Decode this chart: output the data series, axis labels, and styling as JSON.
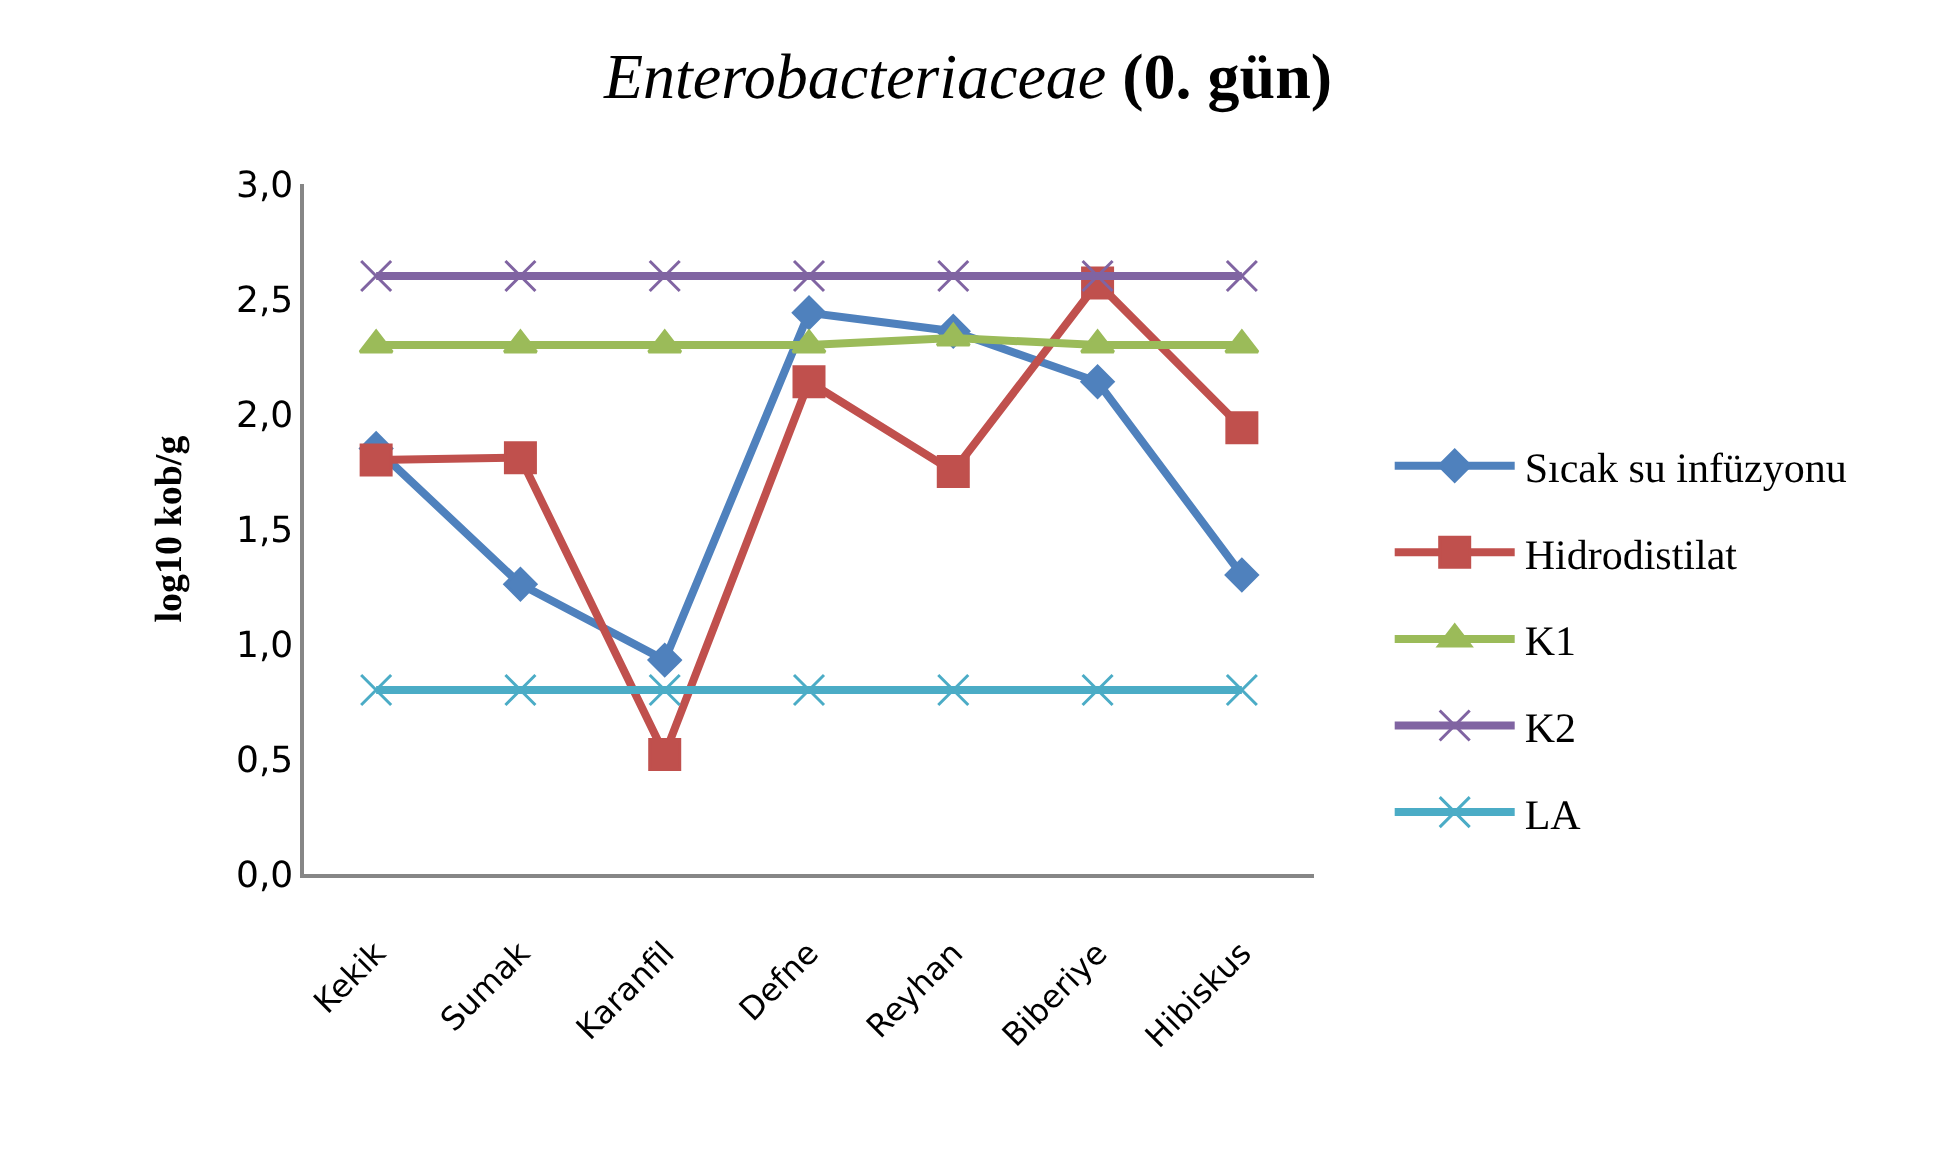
{
  "chart_data": {
    "type": "line",
    "title": "Enterobacteriaceae (0. gün)",
    "ylabel": "log10 kob/g",
    "categories": [
      "Kekik",
      "Sumak",
      "Karanfil",
      "Defne",
      "Reyhan",
      "Biberiye",
      "Hibiskus"
    ],
    "series": [
      {
        "name": "Sıcak su infüzyonu",
        "color": "#4f81bd",
        "marker": "diamond",
        "values": [
          1.85,
          1.26,
          0.93,
          2.44,
          2.36,
          2.14,
          1.3
        ]
      },
      {
        "name": "Hidrodistilat",
        "color": "#c0504d",
        "marker": "square",
        "values": [
          1.8,
          1.81,
          0.52,
          2.14,
          1.75,
          2.57,
          1.94
        ]
      },
      {
        "name": "K1",
        "color": "#9bbb59",
        "marker": "triangle",
        "values": [
          2.3,
          2.3,
          2.3,
          2.3,
          2.33,
          2.3,
          2.3
        ]
      },
      {
        "name": "K2",
        "color": "#8064a2",
        "marker": "cross",
        "values": [
          2.6,
          2.6,
          2.6,
          2.6,
          2.6,
          2.6,
          2.6
        ]
      },
      {
        "name": "LA",
        "color": "#4bacc6",
        "marker": "cross",
        "values": [
          0.8,
          0.8,
          0.8,
          0.8,
          0.8,
          0.8,
          0.8
        ]
      }
    ],
    "ylim": [
      0,
      3
    ],
    "yticks": [
      {
        "value": 0,
        "label": "0,0"
      },
      {
        "value": 0.5,
        "label": "0,5"
      },
      {
        "value": 1,
        "label": "1,0"
      },
      {
        "value": 1.5,
        "label": "1,5"
      },
      {
        "value": 2,
        "label": "2,0"
      },
      {
        "value": 2.5,
        "label": "2,5"
      },
      {
        "value": 3,
        "label": "3,0"
      }
    ],
    "grid": false,
    "legend": "right",
    "line_style": "solid"
  }
}
